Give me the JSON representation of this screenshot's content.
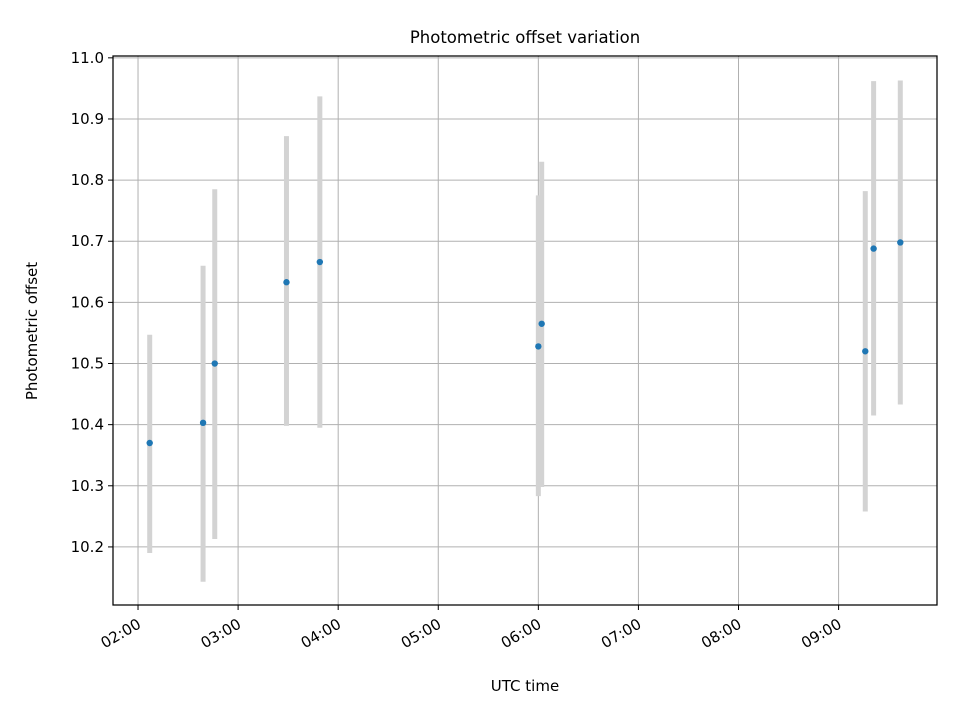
{
  "chart_data": {
    "type": "scatter",
    "title": "Photometric offset variation",
    "xlabel": "UTC time",
    "ylabel": "Photometric offset",
    "x_tick_labels": [
      "02:00",
      "03:00",
      "04:00",
      "05:00",
      "06:00",
      "07:00",
      "08:00",
      "09:00"
    ],
    "y_ticks": [
      10.2,
      10.3,
      10.4,
      10.5,
      10.6,
      10.7,
      10.8,
      10.9,
      11.0
    ],
    "y_tick_labels": [
      "10.2",
      "10.3",
      "10.4",
      "10.5",
      "10.6",
      "10.7",
      "10.8",
      "10.9",
      "11.0"
    ],
    "xlim": [
      "01:45",
      "09:59"
    ],
    "ylim": [
      10.105,
      11.003
    ],
    "grid": true,
    "point_color": "#1f77b4",
    "errorbar_color": "#d3d3d3",
    "points": [
      {
        "time": "02:07",
        "y": 10.37,
        "low": 10.19,
        "high": 10.547
      },
      {
        "time": "02:39",
        "y": 10.403,
        "low": 10.143,
        "high": 10.66
      },
      {
        "time": "02:46",
        "y": 10.5,
        "low": 10.213,
        "high": 10.785
      },
      {
        "time": "03:29",
        "y": 10.633,
        "low": 10.398,
        "high": 10.872
      },
      {
        "time": "03:49",
        "y": 10.666,
        "low": 10.395,
        "high": 10.937
      },
      {
        "time": "06:00",
        "y": 10.528,
        "low": 10.283,
        "high": 10.775
      },
      {
        "time": "06:02",
        "y": 10.565,
        "low": 10.298,
        "high": 10.83
      },
      {
        "time": "09:16",
        "y": 10.52,
        "low": 10.258,
        "high": 10.782
      },
      {
        "time": "09:21",
        "y": 10.688,
        "low": 10.415,
        "high": 10.962
      },
      {
        "time": "09:37",
        "y": 10.698,
        "low": 10.433,
        "high": 10.963
      }
    ]
  }
}
